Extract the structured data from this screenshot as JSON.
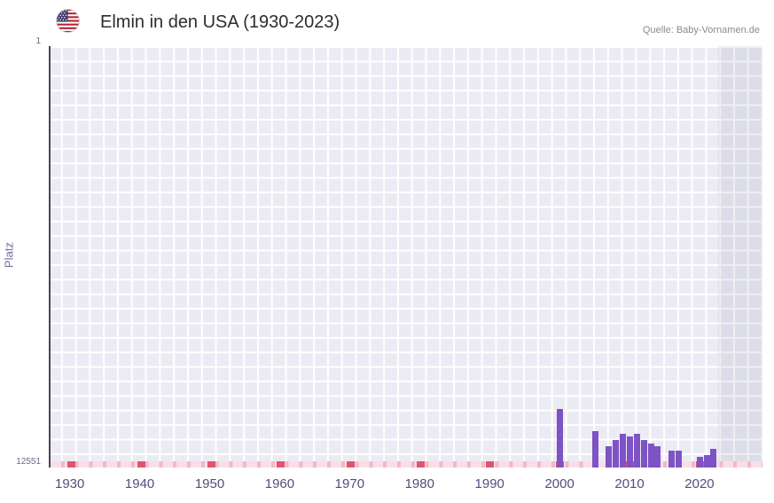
{
  "header": {
    "title": "Elmin in den USA (1930-2023)",
    "source": "Quelle: Baby-Vornamen.de"
  },
  "chart_data": {
    "type": "bar",
    "title": "Elmin in den USA (1930-2023)",
    "xlabel": "",
    "ylabel": "Platz",
    "y_axis": {
      "min": 1,
      "max": 12551,
      "inverted": true,
      "top_tick": "1",
      "bottom_tick": "12551"
    },
    "x_range": [
      1927,
      2029
    ],
    "x_ticks": [
      1930,
      1940,
      1950,
      1960,
      1970,
      1980,
      1990,
      2000,
      2010,
      2020
    ],
    "bars": [
      {
        "year": 2000,
        "rank": 10810
      },
      {
        "year": 2005,
        "rank": 11470
      },
      {
        "year": 2007,
        "rank": 11920
      },
      {
        "year": 2008,
        "rank": 11730
      },
      {
        "year": 2009,
        "rank": 11550
      },
      {
        "year": 2010,
        "rank": 11630
      },
      {
        "year": 2011,
        "rank": 11550
      },
      {
        "year": 2012,
        "rank": 11730
      },
      {
        "year": 2013,
        "rank": 11840
      },
      {
        "year": 2014,
        "rank": 11920
      },
      {
        "year": 2016,
        "rank": 12050
      },
      {
        "year": 2017,
        "rank": 12050
      },
      {
        "year": 2020,
        "rank": 12230
      },
      {
        "year": 2021,
        "rank": 12180
      },
      {
        "year": 2022,
        "rank": 12000
      }
    ],
    "highlight_band": {
      "start_year": 2022.6,
      "end_year": 2029
    },
    "grid": "on",
    "legend": "none",
    "colors": {
      "bar": "#7d53c5",
      "plot_bg": "#ebebf4",
      "grid_line": "#ffffff",
      "left_axis_line": "#4a4458",
      "baseline_pink": "#f3b9c8",
      "decade_marker": "#e0556e",
      "highlight_band": "rgba(100,100,140,0.10)"
    }
  }
}
